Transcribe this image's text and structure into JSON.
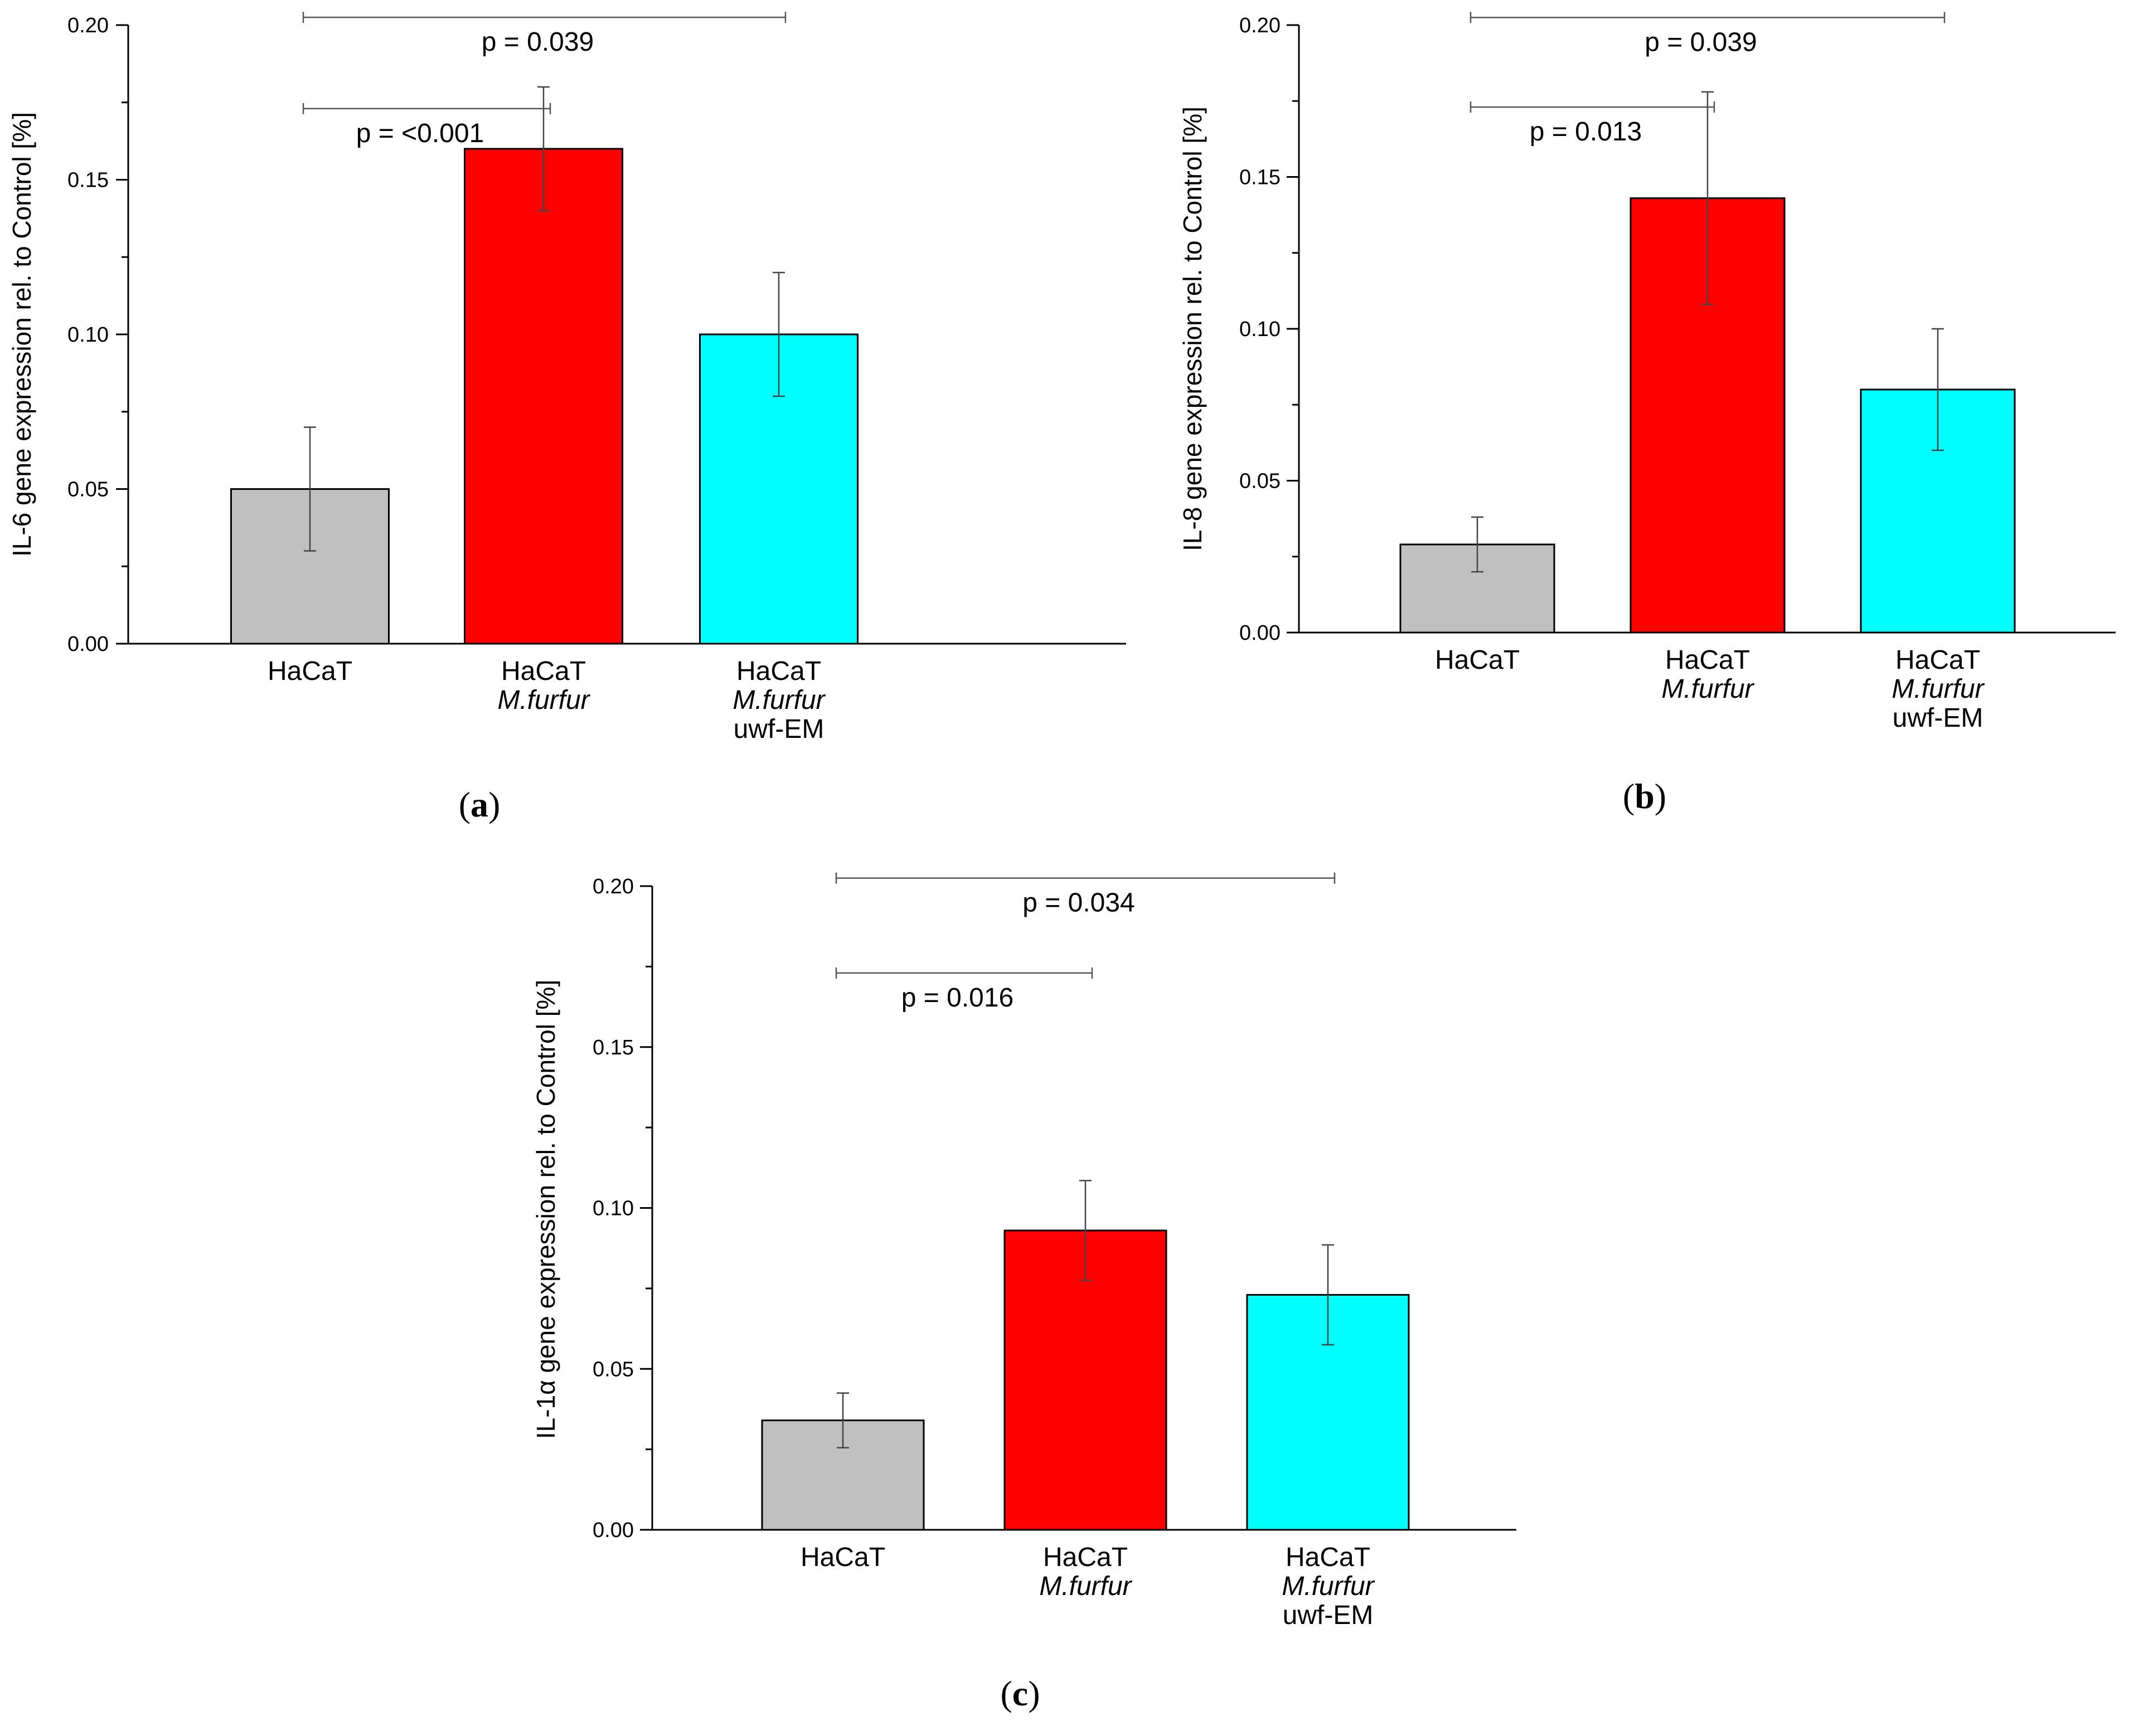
{
  "figure": {
    "charts_count": 3
  },
  "colors": {
    "hacat": "#c0c0c0",
    "mfurfur": "#ff0000",
    "uwf": "#00ffff",
    "axis": "#000000",
    "bracket": "#555555"
  },
  "chart_data": [
    {
      "id": "a",
      "type": "bar",
      "panel_label": "a",
      "ylabel": "IL-6 gene expression rel. to Control [%]",
      "xlabel": "",
      "ylim": [
        0,
        0.2
      ],
      "yticks": [
        "0.00",
        "0.05",
        "0.10",
        "0.15",
        "0.20"
      ],
      "categories": [
        {
          "lines": [
            "HaCaT"
          ],
          "italic": [
            false
          ]
        },
        {
          "lines": [
            "HaCaT",
            "M.furfur"
          ],
          "italic": [
            false,
            true
          ]
        },
        {
          "lines": [
            "HaCaT",
            "M.furfur",
            "uwf-EM"
          ],
          "italic": [
            false,
            true,
            false
          ]
        }
      ],
      "values": [
        0.05,
        0.16,
        0.1
      ],
      "errors": [
        0.02,
        0.02,
        0.02
      ],
      "bar_colors": [
        "#c0c0c0",
        "#ff0000",
        "#00ffff"
      ],
      "comparisons": [
        {
          "from": 0,
          "to": 2,
          "label": "p = 0.039",
          "level": 0.2025
        },
        {
          "from": 0,
          "to": 1,
          "label": "p = <0.001",
          "level": 0.173
        }
      ]
    },
    {
      "id": "b",
      "type": "bar",
      "panel_label": "b",
      "ylabel": "IL-8 gene expression rel. to Control [%]",
      "xlabel": "",
      "ylim": [
        0,
        0.2
      ],
      "yticks": [
        "0.00",
        "0.05",
        "0.10",
        "0.15",
        "0.20"
      ],
      "categories": [
        {
          "lines": [
            "HaCaT"
          ],
          "italic": [
            false
          ]
        },
        {
          "lines": [
            "HaCaT",
            "M.furfur"
          ],
          "italic": [
            false,
            true
          ]
        },
        {
          "lines": [
            "HaCaT",
            "M.furfur",
            "uwf-EM"
          ],
          "italic": [
            false,
            true,
            false
          ]
        }
      ],
      "values": [
        0.029,
        0.143,
        0.08
      ],
      "errors": [
        0.009,
        0.035,
        0.02
      ],
      "bar_colors": [
        "#c0c0c0",
        "#ff0000",
        "#00ffff"
      ],
      "comparisons": [
        {
          "from": 0,
          "to": 2,
          "label": "p = 0.039",
          "level": 0.2025
        },
        {
          "from": 0,
          "to": 1,
          "label": "p = 0.013",
          "level": 0.173
        }
      ]
    },
    {
      "id": "c",
      "type": "bar",
      "panel_label": "c",
      "ylabel": "IL-1α gene expression rel. to Control [%]",
      "xlabel": "",
      "ylim": [
        0,
        0.2
      ],
      "yticks": [
        "0.00",
        "0.05",
        "0.10",
        "0.15",
        "0.20"
      ],
      "categories": [
        {
          "lines": [
            "HaCaT"
          ],
          "italic": [
            false
          ]
        },
        {
          "lines": [
            "HaCaT",
            "M.furfur"
          ],
          "italic": [
            false,
            true
          ]
        },
        {
          "lines": [
            "HaCaT",
            "M.furfur",
            "uwf-EM"
          ],
          "italic": [
            false,
            true,
            false
          ]
        }
      ],
      "values": [
        0.034,
        0.093,
        0.073
      ],
      "errors": [
        0.0085,
        0.0155,
        0.0155
      ],
      "bar_colors": [
        "#c0c0c0",
        "#ff0000",
        "#00ffff"
      ],
      "comparisons": [
        {
          "from": 0,
          "to": 2,
          "label": "p = 0.034",
          "level": 0.2025
        },
        {
          "from": 0,
          "to": 1,
          "label": "p = 0.016",
          "level": 0.173
        }
      ]
    }
  ]
}
